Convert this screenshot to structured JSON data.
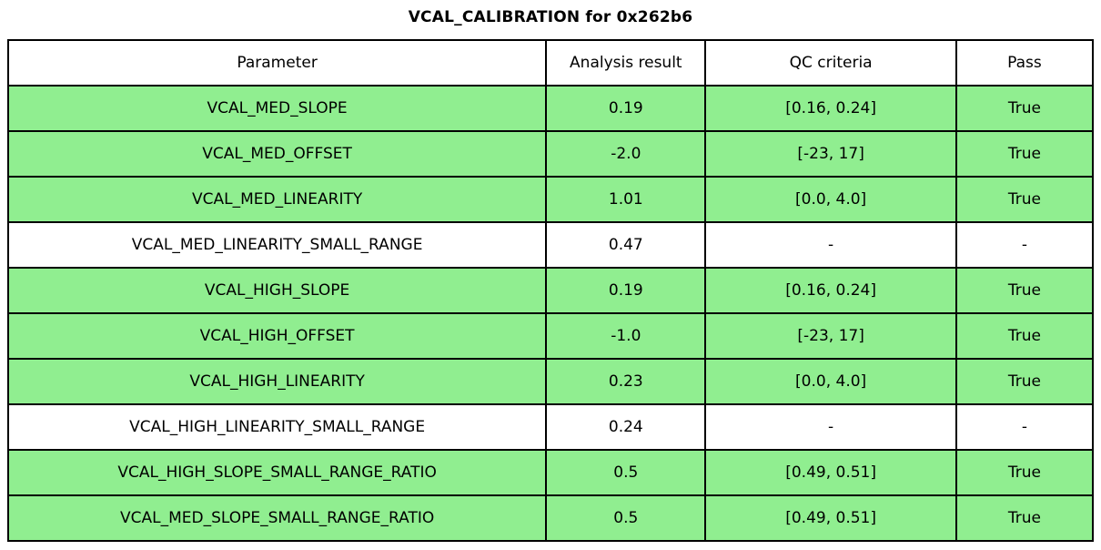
{
  "title": "VCAL_CALIBRATION for 0x262b6",
  "colors": {
    "pass_row_green": "#90EE90",
    "plain_row_white": "#FFFFFF",
    "border_black": "#000000"
  },
  "table": {
    "columns": [
      "Parameter",
      "Analysis result",
      "QC criteria",
      "Pass"
    ],
    "rows": [
      {
        "cells": [
          "VCAL_MED_SLOPE",
          "0.19",
          "[0.16, 0.24]",
          "True"
        ],
        "green": true
      },
      {
        "cells": [
          "VCAL_MED_OFFSET",
          "-2.0",
          "[-23, 17]",
          "True"
        ],
        "green": true
      },
      {
        "cells": [
          "VCAL_MED_LINEARITY",
          "1.01",
          "[0.0, 4.0]",
          "True"
        ],
        "green": true
      },
      {
        "cells": [
          "VCAL_MED_LINEARITY_SMALL_RANGE",
          "0.47",
          "-",
          "-"
        ],
        "green": false
      },
      {
        "cells": [
          "VCAL_HIGH_SLOPE",
          "0.19",
          "[0.16, 0.24]",
          "True"
        ],
        "green": true
      },
      {
        "cells": [
          "VCAL_HIGH_OFFSET",
          "-1.0",
          "[-23, 17]",
          "True"
        ],
        "green": true
      },
      {
        "cells": [
          "VCAL_HIGH_LINEARITY",
          "0.23",
          "[0.0, 4.0]",
          "True"
        ],
        "green": true
      },
      {
        "cells": [
          "VCAL_HIGH_LINEARITY_SMALL_RANGE",
          "0.24",
          "-",
          "-"
        ],
        "green": false
      },
      {
        "cells": [
          "VCAL_HIGH_SLOPE_SMALL_RANGE_RATIO",
          "0.5",
          "[0.49, 0.51]",
          "True"
        ],
        "green": true
      },
      {
        "cells": [
          "VCAL_MED_SLOPE_SMALL_RANGE_RATIO",
          "0.5",
          "[0.49, 0.51]",
          "True"
        ],
        "green": true
      }
    ]
  },
  "chart_data": {
    "type": "table",
    "title": "VCAL_CALIBRATION for 0x262b6",
    "columns": [
      "Parameter",
      "Analysis result",
      "QC criteria",
      "Pass"
    ],
    "rows": [
      [
        "VCAL_MED_SLOPE",
        "0.19",
        "[0.16, 0.24]",
        "True"
      ],
      [
        "VCAL_MED_OFFSET",
        "-2.0",
        "[-23, 17]",
        "True"
      ],
      [
        "VCAL_MED_LINEARITY",
        "1.01",
        "[0.0, 4.0]",
        "True"
      ],
      [
        "VCAL_MED_LINEARITY_SMALL_RANGE",
        "0.47",
        "-",
        "-"
      ],
      [
        "VCAL_HIGH_SLOPE",
        "0.19",
        "[0.16, 0.24]",
        "True"
      ],
      [
        "VCAL_HIGH_OFFSET",
        "-1.0",
        "[-23, 17]",
        "True"
      ],
      [
        "VCAL_HIGH_LINEARITY",
        "0.23",
        "[0.0, 4.0]",
        "True"
      ],
      [
        "VCAL_HIGH_LINEARITY_SMALL_RANGE",
        "0.24",
        "-",
        "-"
      ],
      [
        "VCAL_HIGH_SLOPE_SMALL_RANGE_RATIO",
        "0.5",
        "[0.49, 0.51]",
        "True"
      ],
      [
        "VCAL_MED_SLOPE_SMALL_RANGE_RATIO",
        "0.5",
        "[0.49, 0.51]",
        "True"
      ]
    ],
    "row_highlight_green": [
      true,
      true,
      true,
      false,
      true,
      true,
      true,
      false,
      true,
      true
    ],
    "layout": {
      "grid": true,
      "header_background": "#FFFFFF",
      "pass_background": "#90EE90"
    }
  }
}
